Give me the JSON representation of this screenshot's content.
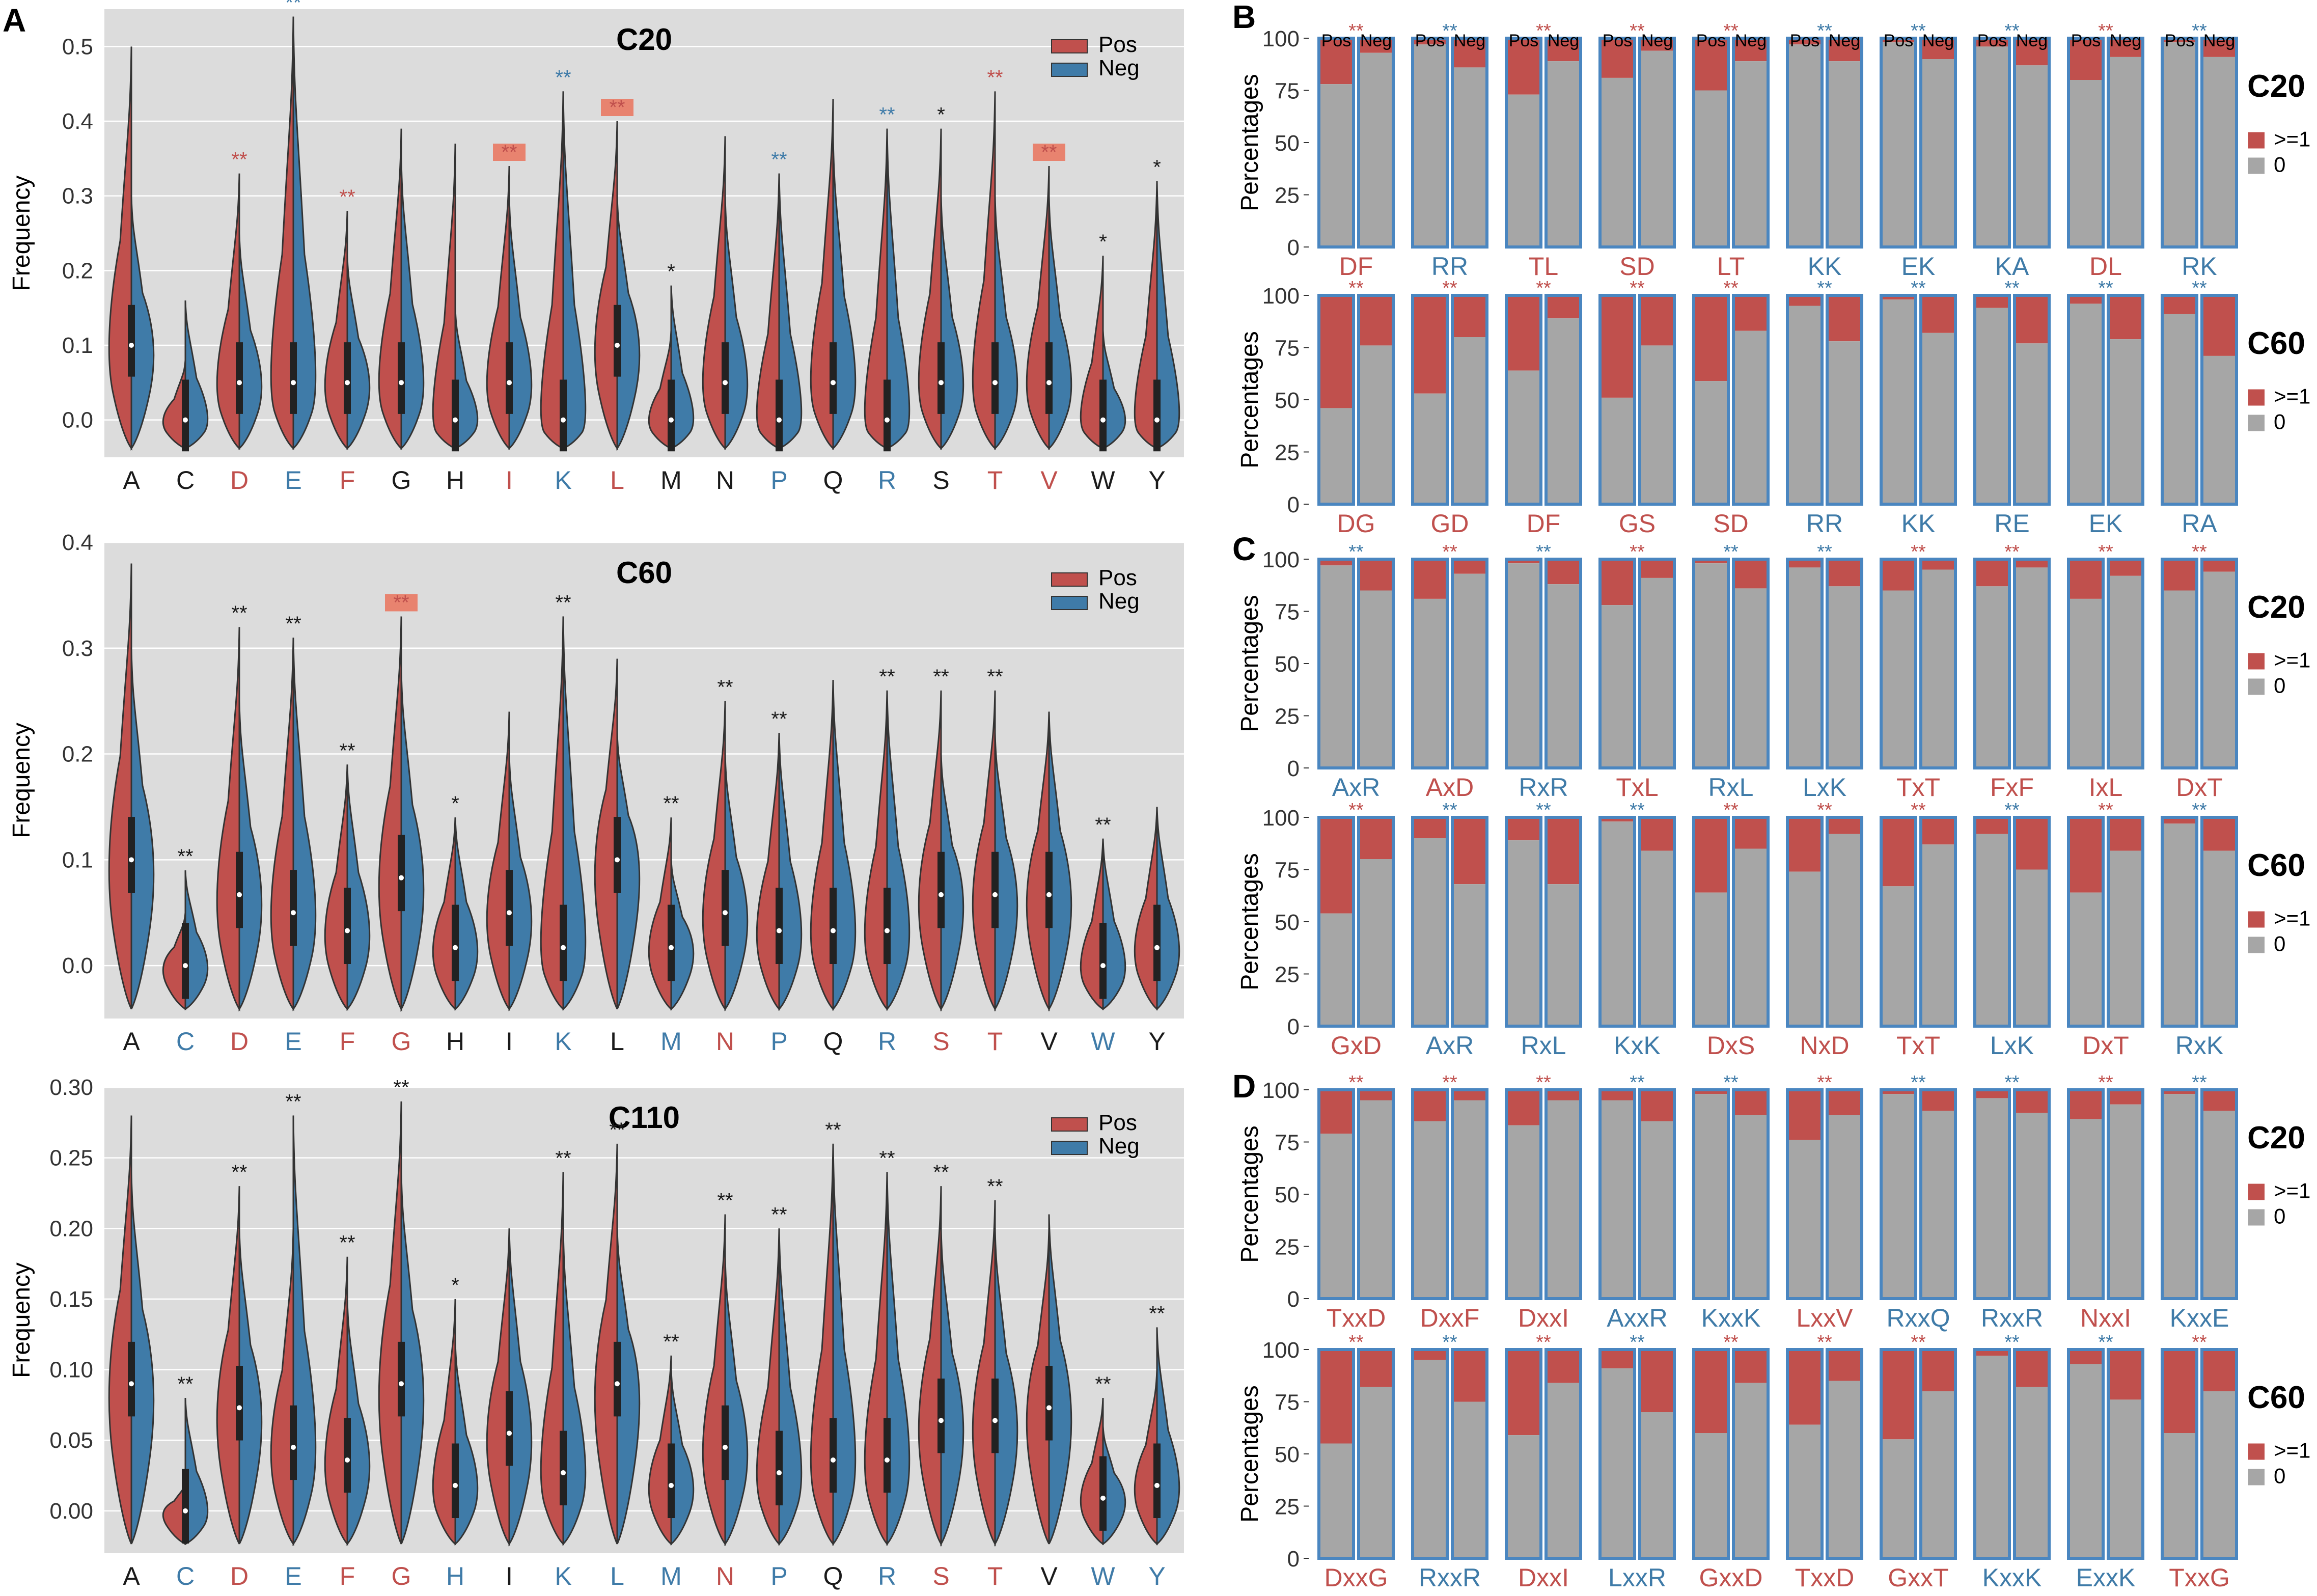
{
  "colors": {
    "pos": "#C0504D",
    "neg": "#3F7BA8",
    "neutral_label": "#1a1a1a",
    "plot_bg": "#DCDCDC",
    "bar_zero": "#A6A6A6",
    "bar_border": "#4A86C0",
    "violin_stroke": "#333333"
  },
  "panel_letters": {
    "a": "A",
    "b": "B",
    "c": "C",
    "d": "D"
  },
  "panel_a_common": {
    "ylabel": "Frequency",
    "legend": [
      "Pos",
      "Neg"
    ],
    "amino_acids": [
      "A",
      "C",
      "D",
      "E",
      "F",
      "G",
      "H",
      "I",
      "K",
      "L",
      "M",
      "N",
      "P",
      "Q",
      "R",
      "S",
      "T",
      "V",
      "W",
      "Y"
    ]
  },
  "chart_data": [
    {
      "type": "violin",
      "id": "A-C20",
      "title": "C20",
      "ylabel": "Frequency",
      "ylim": [
        -0.05,
        0.55
      ],
      "yticks": [
        "0.0",
        "0.1",
        "0.2",
        "0.3",
        "0.4",
        "0.5"
      ],
      "ytick_values": [
        0,
        0.1,
        0.2,
        0.3,
        0.4,
        0.5
      ],
      "legend": [
        "Pos",
        "Neg"
      ],
      "categories": [
        "A",
        "C",
        "D",
        "E",
        "F",
        "G",
        "H",
        "I",
        "K",
        "L",
        "M",
        "N",
        "P",
        "Q",
        "R",
        "S",
        "T",
        "V",
        "W",
        "Y"
      ],
      "label_color": [
        "k",
        "k",
        "pos",
        "neg",
        "pos",
        "k",
        "k",
        "pos",
        "neg",
        "pos",
        "k",
        "k",
        "neg",
        "k",
        "neg",
        "k",
        "pos",
        "pos",
        "k",
        "k"
      ],
      "stars": [
        "",
        "",
        "**",
        "**",
        "**",
        "",
        "",
        "**",
        "**",
        "**",
        "*",
        "",
        "**",
        "",
        "**",
        "*",
        "**",
        "**",
        "*",
        "*"
      ],
      "star_color": [
        "k",
        "k",
        "pos",
        "neg",
        "pos",
        "k",
        "k",
        "pos",
        "neg",
        "pos",
        "k",
        "k",
        "neg",
        "k",
        "neg",
        "k",
        "pos",
        "pos",
        "k",
        "k"
      ],
      "highlight": [
        false,
        false,
        false,
        false,
        false,
        false,
        false,
        true,
        false,
        true,
        false,
        false,
        false,
        false,
        false,
        false,
        false,
        true,
        false,
        false
      ],
      "pos_max": [
        0.5,
        0.08,
        0.33,
        0.54,
        0.28,
        0.39,
        0.37,
        0.34,
        0.44,
        0.4,
        0.12,
        0.38,
        0.33,
        0.43,
        0.39,
        0.39,
        0.44,
        0.34,
        0.22,
        0.32
      ],
      "neg_max": [
        0.3,
        0.16,
        0.25,
        0.54,
        0.22,
        0.35,
        0.15,
        0.3,
        0.44,
        0.3,
        0.18,
        0.3,
        0.33,
        0.38,
        0.39,
        0.3,
        0.3,
        0.3,
        0.12,
        0.32
      ],
      "pos_median": [
        0.1,
        0.0,
        0.05,
        0.05,
        0.05,
        0.05,
        0.0,
        0.05,
        0.0,
        0.1,
        0.0,
        0.05,
        0.0,
        0.05,
        0.0,
        0.05,
        0.05,
        0.05,
        0.0,
        0.0
      ],
      "neg_median": [
        0.1,
        0.0,
        0.05,
        0.05,
        0.05,
        0.05,
        0.0,
        0.05,
        0.0,
        0.1,
        0.0,
        0.05,
        0.0,
        0.05,
        0.0,
        0.05,
        0.05,
        0.05,
        0.0,
        0.0
      ]
    },
    {
      "type": "violin",
      "id": "A-C60",
      "title": "C60",
      "ylabel": "Frequency",
      "ylim": [
        -0.05,
        0.4
      ],
      "yticks": [
        "0.0",
        "0.1",
        "0.2",
        "0.3",
        "0.4"
      ],
      "ytick_values": [
        0,
        0.1,
        0.2,
        0.3,
        0.4
      ],
      "legend": [
        "Pos",
        "Neg"
      ],
      "categories": [
        "A",
        "C",
        "D",
        "E",
        "F",
        "G",
        "H",
        "I",
        "K",
        "L",
        "M",
        "N",
        "P",
        "Q",
        "R",
        "S",
        "T",
        "V",
        "W",
        "Y"
      ],
      "label_color": [
        "k",
        "neg",
        "pos",
        "neg",
        "pos",
        "pos",
        "k",
        "k",
        "neg",
        "k",
        "neg",
        "pos",
        "neg",
        "k",
        "neg",
        "pos",
        "pos",
        "k",
        "neg",
        "k"
      ],
      "stars": [
        "",
        "**",
        "**",
        "**",
        "**",
        "**",
        "*",
        "",
        "**",
        "",
        "**",
        "**",
        "**",
        "",
        "**",
        "**",
        "**",
        "",
        "**",
        ""
      ],
      "star_color": [
        "k",
        "k",
        "k",
        "k",
        "k",
        "pos",
        "k",
        "k",
        "k",
        "k",
        "k",
        "k",
        "k",
        "k",
        "k",
        "k",
        "k",
        "k",
        "k",
        "k"
      ],
      "highlight": [
        false,
        false,
        false,
        false,
        false,
        true,
        false,
        false,
        false,
        false,
        false,
        false,
        false,
        false,
        false,
        false,
        false,
        false,
        false,
        false
      ],
      "pos_max": [
        0.38,
        0.05,
        0.32,
        0.31,
        0.19,
        0.33,
        0.14,
        0.24,
        0.33,
        0.29,
        0.14,
        0.25,
        0.22,
        0.27,
        0.26,
        0.26,
        0.26,
        0.24,
        0.12,
        0.15
      ],
      "neg_max": [
        0.3,
        0.09,
        0.25,
        0.31,
        0.19,
        0.28,
        0.14,
        0.2,
        0.33,
        0.22,
        0.1,
        0.2,
        0.22,
        0.27,
        0.26,
        0.2,
        0.22,
        0.24,
        0.12,
        0.15
      ],
      "pos_median": [
        0.1,
        0.0,
        0.067,
        0.05,
        0.033,
        0.083,
        0.017,
        0.05,
        0.017,
        0.1,
        0.017,
        0.05,
        0.033,
        0.033,
        0.033,
        0.067,
        0.067,
        0.067,
        0.0,
        0.017
      ],
      "neg_median": [
        0.1,
        0.0,
        0.067,
        0.05,
        0.033,
        0.083,
        0.017,
        0.05,
        0.017,
        0.1,
        0.017,
        0.05,
        0.033,
        0.033,
        0.033,
        0.067,
        0.067,
        0.067,
        0.0,
        0.017
      ]
    },
    {
      "type": "violin",
      "id": "A-C110",
      "title": "C110",
      "ylabel": "Frequency",
      "ylim": [
        -0.03,
        0.3
      ],
      "yticks": [
        "0.00",
        "0.05",
        "0.10",
        "0.15",
        "0.20",
        "0.25",
        "0.30"
      ],
      "ytick_values": [
        0,
        0.05,
        0.1,
        0.15,
        0.2,
        0.25,
        0.3
      ],
      "legend": [
        "Pos",
        "Neg"
      ],
      "categories": [
        "A",
        "C",
        "D",
        "E",
        "F",
        "G",
        "H",
        "I",
        "K",
        "L",
        "M",
        "N",
        "P",
        "Q",
        "R",
        "S",
        "T",
        "V",
        "W",
        "Y"
      ],
      "label_color": [
        "k",
        "neg",
        "pos",
        "neg",
        "pos",
        "pos",
        "neg",
        "k",
        "neg",
        "neg",
        "neg",
        "pos",
        "neg",
        "k",
        "neg",
        "pos",
        "pos",
        "k",
        "neg",
        "neg"
      ],
      "stars": [
        "",
        "**",
        "**",
        "**",
        "**",
        "**",
        "*",
        "",
        "**",
        "**",
        "**",
        "**",
        "**",
        "**",
        "**",
        "**",
        "**",
        "",
        "**",
        "**"
      ],
      "star_color": [
        "k",
        "k",
        "k",
        "k",
        "k",
        "k",
        "k",
        "k",
        "k",
        "k",
        "k",
        "k",
        "k",
        "k",
        "k",
        "k",
        "k",
        "k",
        "k",
        "k"
      ],
      "highlight": [
        false,
        false,
        false,
        false,
        false,
        false,
        false,
        false,
        false,
        false,
        false,
        false,
        false,
        false,
        false,
        false,
        false,
        false,
        false,
        false
      ],
      "pos_max": [
        0.28,
        0.02,
        0.23,
        0.2,
        0.18,
        0.29,
        0.15,
        0.2,
        0.24,
        0.26,
        0.11,
        0.21,
        0.2,
        0.26,
        0.24,
        0.23,
        0.22,
        0.2,
        0.08,
        0.1
      ],
      "neg_max": [
        0.24,
        0.08,
        0.2,
        0.28,
        0.15,
        0.24,
        0.12,
        0.2,
        0.2,
        0.2,
        0.1,
        0.18,
        0.2,
        0.26,
        0.24,
        0.2,
        0.2,
        0.21,
        0.06,
        0.13
      ],
      "pos_median": [
        0.09,
        0.0,
        0.073,
        0.045,
        0.036,
        0.09,
        0.018,
        0.055,
        0.027,
        0.09,
        0.018,
        0.045,
        0.027,
        0.036,
        0.036,
        0.064,
        0.064,
        0.073,
        0.009,
        0.018
      ],
      "neg_median": [
        0.09,
        0.0,
        0.073,
        0.045,
        0.036,
        0.09,
        0.018,
        0.055,
        0.027,
        0.09,
        0.018,
        0.045,
        0.027,
        0.036,
        0.036,
        0.064,
        0.064,
        0.073,
        0.009,
        0.018
      ]
    },
    {
      "type": "stacked_bar",
      "id": "B-C20",
      "title": "C20",
      "ylabel": "Percentages",
      "yticks": [
        "0",
        "25",
        "50",
        "75",
        "100"
      ],
      "ylim": [
        0,
        100
      ],
      "legend": [
        ">=1",
        "0"
      ],
      "bar_labels": [
        "Pos",
        "Neg"
      ],
      "show_bar_labels": true,
      "categories": [
        "DF",
        "RR",
        "TL",
        "SD",
        "LT",
        "KK",
        "EK",
        "KA",
        "DL",
        "RK"
      ],
      "label_color": [
        "pos",
        "neg",
        "pos",
        "pos",
        "pos",
        "neg",
        "neg",
        "neg",
        "pos",
        "neg"
      ],
      "stars": [
        "**",
        "**",
        "**",
        "**",
        "**",
        "**",
        "**",
        "**",
        "**",
        "**"
      ],
      "star_color": [
        "pos",
        "neg",
        "pos",
        "pos",
        "pos",
        "neg",
        "neg",
        "neg",
        "pos",
        "neg"
      ],
      "pos_zero_pct": [
        78,
        97,
        73,
        81,
        75,
        97,
        98,
        96,
        80,
        98
      ],
      "neg_zero_pct": [
        93,
        86,
        89,
        94,
        89,
        89,
        90,
        87,
        91,
        91
      ]
    },
    {
      "type": "stacked_bar",
      "id": "B-C60",
      "title": "C60",
      "ylabel": "Percentages",
      "yticks": [
        "0",
        "25",
        "50",
        "75",
        "100"
      ],
      "ylim": [
        0,
        100
      ],
      "legend": [
        ">=1",
        "0"
      ],
      "show_bar_labels": false,
      "categories": [
        "DG",
        "GD",
        "DF",
        "GS",
        "SD",
        "RR",
        "KK",
        "RE",
        "EK",
        "RA"
      ],
      "label_color": [
        "pos",
        "pos",
        "pos",
        "pos",
        "pos",
        "neg",
        "neg",
        "neg",
        "neg",
        "neg"
      ],
      "stars": [
        "**",
        "**",
        "**",
        "**",
        "**",
        "**",
        "**",
        "**",
        "**",
        "**"
      ],
      "star_color": [
        "pos",
        "pos",
        "pos",
        "pos",
        "pos",
        "neg",
        "neg",
        "neg",
        "neg",
        "neg"
      ],
      "pos_zero_pct": [
        46,
        53,
        64,
        51,
        59,
        95,
        98,
        94,
        96,
        91
      ],
      "neg_zero_pct": [
        76,
        80,
        89,
        76,
        83,
        78,
        82,
        77,
        79,
        71
      ]
    },
    {
      "type": "stacked_bar",
      "id": "C-C20",
      "title": "C20",
      "ylabel": "Percentages",
      "yticks": [
        "0",
        "25",
        "50",
        "75",
        "100"
      ],
      "ylim": [
        0,
        100
      ],
      "legend": [
        ">=1",
        "0"
      ],
      "show_bar_labels": false,
      "categories": [
        "AxR",
        "AxD",
        "RxR",
        "TxL",
        "RxL",
        "LxK",
        "TxT",
        "FxF",
        "IxL",
        "DxT"
      ],
      "label_color": [
        "neg",
        "pos",
        "neg",
        "pos",
        "neg",
        "neg",
        "pos",
        "pos",
        "pos",
        "pos"
      ],
      "stars": [
        "**",
        "**",
        "**",
        "**",
        "**",
        "**",
        "**",
        "**",
        "**",
        "**"
      ],
      "star_color": [
        "neg",
        "pos",
        "neg",
        "pos",
        "neg",
        "neg",
        "pos",
        "pos",
        "pos",
        "pos"
      ],
      "pos_zero_pct": [
        97,
        81,
        98,
        78,
        98,
        96,
        85,
        87,
        81,
        85
      ],
      "neg_zero_pct": [
        85,
        93,
        88,
        91,
        86,
        87,
        95,
        96,
        92,
        94
      ]
    },
    {
      "type": "stacked_bar",
      "id": "C-C60",
      "title": "C60",
      "ylabel": "Percentages",
      "yticks": [
        "0",
        "25",
        "50",
        "75",
        "100"
      ],
      "ylim": [
        0,
        100
      ],
      "legend": [
        ">=1",
        "0"
      ],
      "show_bar_labels": false,
      "categories": [
        "GxD",
        "AxR",
        "RxL",
        "KxK",
        "DxS",
        "NxD",
        "TxT",
        "LxK",
        "DxT",
        "RxK"
      ],
      "label_color": [
        "pos",
        "neg",
        "neg",
        "neg",
        "pos",
        "pos",
        "pos",
        "neg",
        "pos",
        "neg"
      ],
      "stars": [
        "**",
        "**",
        "**",
        "**",
        "**",
        "**",
        "**",
        "**",
        "**",
        "**"
      ],
      "star_color": [
        "pos",
        "neg",
        "neg",
        "neg",
        "pos",
        "pos",
        "pos",
        "neg",
        "pos",
        "neg"
      ],
      "pos_zero_pct": [
        54,
        90,
        89,
        98,
        64,
        74,
        67,
        92,
        64,
        97
      ],
      "neg_zero_pct": [
        80,
        68,
        68,
        84,
        85,
        92,
        87,
        75,
        84,
        84
      ]
    },
    {
      "type": "stacked_bar",
      "id": "D-C20",
      "title": "C20",
      "ylabel": "Percentages",
      "yticks": [
        "0",
        "25",
        "50",
        "75",
        "100"
      ],
      "ylim": [
        0,
        100
      ],
      "legend": [
        ">=1",
        "0"
      ],
      "show_bar_labels": false,
      "categories": [
        "TxxD",
        "DxxF",
        "DxxI",
        "AxxR",
        "KxxK",
        "LxxV",
        "RxxQ",
        "RxxR",
        "NxxI",
        "KxxE"
      ],
      "label_color": [
        "pos",
        "pos",
        "pos",
        "neg",
        "neg",
        "pos",
        "neg",
        "neg",
        "pos",
        "neg"
      ],
      "stars": [
        "**",
        "**",
        "**",
        "**",
        "**",
        "**",
        "**",
        "**",
        "**",
        "**"
      ],
      "star_color": [
        "pos",
        "pos",
        "pos",
        "neg",
        "neg",
        "pos",
        "neg",
        "neg",
        "pos",
        "neg"
      ],
      "pos_zero_pct": [
        79,
        85,
        83,
        95,
        98,
        76,
        98,
        96,
        86,
        98
      ],
      "neg_zero_pct": [
        95,
        95,
        95,
        85,
        88,
        88,
        90,
        89,
        93,
        90
      ]
    },
    {
      "type": "stacked_bar",
      "id": "D-C60",
      "title": "C60",
      "ylabel": "Percentages",
      "yticks": [
        "0",
        "25",
        "50",
        "75",
        "100"
      ],
      "ylim": [
        0,
        100
      ],
      "legend": [
        ">=1",
        "0"
      ],
      "show_bar_labels": false,
      "categories": [
        "DxxG",
        "RxxR",
        "DxxI",
        "LxxR",
        "GxxD",
        "TxxD",
        "GxxT",
        "KxxK",
        "ExxK",
        "TxxG"
      ],
      "label_color": [
        "pos",
        "neg",
        "pos",
        "neg",
        "pos",
        "pos",
        "pos",
        "neg",
        "neg",
        "pos"
      ],
      "stars": [
        "**",
        "**",
        "**",
        "**",
        "**",
        "**",
        "**",
        "**",
        "**",
        "**"
      ],
      "star_color": [
        "pos",
        "neg",
        "pos",
        "neg",
        "pos",
        "pos",
        "pos",
        "neg",
        "neg",
        "pos"
      ],
      "pos_zero_pct": [
        55,
        95,
        59,
        91,
        60,
        64,
        57,
        97,
        93,
        60
      ],
      "neg_zero_pct": [
        82,
        75,
        84,
        70,
        84,
        85,
        80,
        82,
        76,
        80
      ]
    }
  ]
}
